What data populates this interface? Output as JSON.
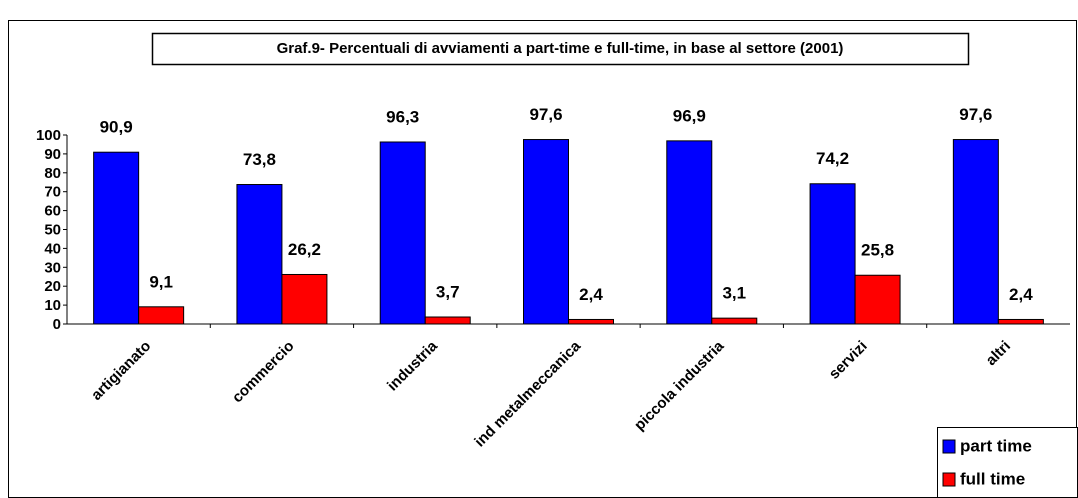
{
  "chart_data": {
    "type": "bar",
    "title": "Graf.9- Percentuali di avviamenti a part-time e full-time, in base al settore (2001)",
    "categories": [
      "artigianato",
      "commercio",
      "industria",
      "ind metalmeccanica",
      "piccola industria",
      "servizi",
      "altri"
    ],
    "series": [
      {
        "name": "part time",
        "color": "#0000ff",
        "values": [
          90.9,
          73.8,
          96.3,
          97.6,
          96.9,
          74.2,
          97.6
        ],
        "value_labels": [
          "90,9",
          "73,8",
          "96,3",
          "97,6",
          "96,9",
          "74,2",
          "97,6"
        ]
      },
      {
        "name": "full time",
        "color": "#ff0000",
        "values": [
          9.1,
          26.2,
          3.7,
          2.4,
          3.1,
          25.8,
          2.4
        ],
        "value_labels": [
          "9,1",
          "26,2",
          "3,7",
          "2,4",
          "3,1",
          "25,8",
          "2,4"
        ]
      }
    ],
    "ylim": [
      0,
      100
    ],
    "yticks": [
      0,
      10,
      20,
      30,
      40,
      50,
      60,
      70,
      80,
      90,
      100
    ],
    "legend": "bottom-right"
  }
}
